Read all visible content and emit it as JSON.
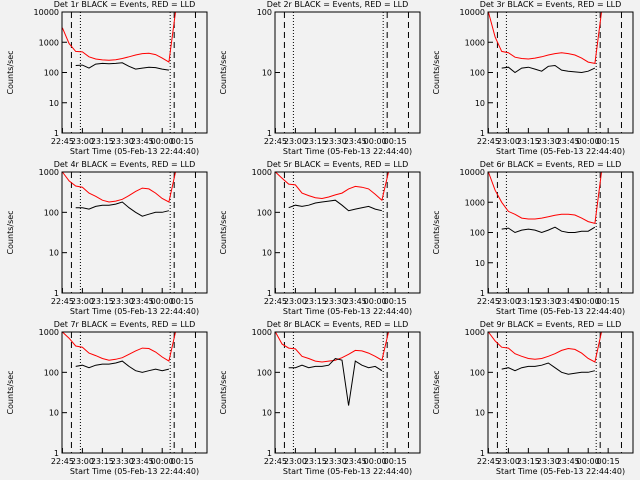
{
  "chart_data": [
    {
      "type": "line",
      "title": "Det 1r BLACK = Events, RED = LLD",
      "xlabel": "Start Time (05-Feb-13 22:44:40)",
      "ylabel": "Counts/sec",
      "log_y": true,
      "x": [
        "22:45",
        "22:50",
        "22:55",
        "23:00",
        "23:05",
        "23:10",
        "23:15",
        "23:20",
        "23:25",
        "23:30",
        "23:35",
        "23:40",
        "23:45",
        "23:50",
        "23:55",
        "00:00",
        "00:05",
        "00:10"
      ],
      "xlim": [
        "22:44:40",
        "00:33:40"
      ],
      "xticks": [
        "22:45",
        "23:00",
        "23:15",
        "23:30",
        "23:45",
        "00:00",
        "00:15"
      ],
      "ylim": [
        1,
        10000
      ],
      "yticks": [
        1,
        10,
        100,
        1000,
        10000
      ],
      "markers": [
        {
          "x": "22:51:45",
          "style": "dashed"
        },
        {
          "x": "22:58:30",
          "style": "dotted"
        },
        {
          "x": "00:06",
          "style": "dotted"
        },
        {
          "x": "00:09",
          "style": "dashed"
        },
        {
          "x": "00:25",
          "style": "dashed"
        }
      ],
      "series": [
        {
          "name": "LLD",
          "color": "#ff0000",
          "values": [
            3000,
            900,
            500,
            480,
            330,
            280,
            260,
            255,
            265,
            290,
            330,
            380,
            420,
            430,
            390,
            300,
            220,
            10000
          ]
        },
        {
          "name": "Events",
          "color": "#000000",
          "values": [
            null,
            null,
            170,
            175,
            140,
            190,
            200,
            195,
            200,
            210,
            160,
            130,
            140,
            150,
            145,
            130,
            120,
            null
          ]
        }
      ]
    },
    {
      "type": "line",
      "title": "Det 2r BLACK = Events, RED = LLD",
      "xlabel": "Start Time (05-Feb-13 22:44:40)",
      "ylabel": "Counts/sec",
      "log_y": true,
      "x": [],
      "xlim": [
        "22:44:40",
        "00:33:40"
      ],
      "xticks": [
        "22:45",
        "23:00",
        "23:15",
        "23:30",
        "23:45",
        "00:00",
        "00:15"
      ],
      "ylim": [
        1,
        100
      ],
      "yticks": [
        1,
        10,
        100
      ],
      "markers": [
        {
          "x": "22:51:45",
          "style": "dashed"
        },
        {
          "x": "22:58:30",
          "style": "dotted"
        },
        {
          "x": "00:06",
          "style": "dotted"
        },
        {
          "x": "00:09",
          "style": "dashed"
        },
        {
          "x": "00:25",
          "style": "dashed"
        }
      ],
      "series": []
    },
    {
      "type": "line",
      "title": "Det 3r BLACK = Events, RED = LLD",
      "xlabel": "Start Time (05-Feb-13 22:44:40)",
      "ylabel": "Counts/sec",
      "log_y": true,
      "x": [
        "22:45",
        "22:50",
        "22:55",
        "23:00",
        "23:05",
        "23:10",
        "23:15",
        "23:20",
        "23:25",
        "23:30",
        "23:35",
        "23:40",
        "23:45",
        "23:50",
        "23:55",
        "00:00",
        "00:05",
        "00:10"
      ],
      "xlim": [
        "22:44:40",
        "00:33:40"
      ],
      "xticks": [
        "22:45",
        "23:00",
        "23:15",
        "23:30",
        "23:45",
        "00:00",
        "00:15"
      ],
      "ylim": [
        1,
        10000
      ],
      "yticks": [
        1,
        10,
        100,
        1000,
        10000
      ],
      "markers": [
        {
          "x": "22:51:45",
          "style": "dashed"
        },
        {
          "x": "22:58:30",
          "style": "dotted"
        },
        {
          "x": "00:06",
          "style": "dotted"
        },
        {
          "x": "00:09",
          "style": "dashed"
        },
        {
          "x": "00:25",
          "style": "dashed"
        }
      ],
      "series": [
        {
          "name": "LLD",
          "color": "#ff0000",
          "values": [
            10000,
            1500,
            500,
            450,
            320,
            290,
            280,
            300,
            330,
            380,
            420,
            450,
            420,
            380,
            300,
            220,
            200,
            10000
          ]
        },
        {
          "name": "Events",
          "color": "#000000",
          "values": [
            null,
            null,
            140,
            150,
            100,
            140,
            150,
            130,
            110,
            160,
            170,
            120,
            110,
            105,
            100,
            110,
            140,
            null
          ]
        }
      ]
    },
    {
      "type": "line",
      "title": "Det 4r BLACK = Events, RED = LLD",
      "xlabel": "Start Time (05-Feb-13 22:44:40)",
      "ylabel": "Counts/sec",
      "log_y": true,
      "x": [
        "22:45",
        "22:50",
        "22:55",
        "23:00",
        "23:05",
        "23:10",
        "23:15",
        "23:20",
        "23:25",
        "23:30",
        "23:35",
        "23:40",
        "23:45",
        "23:50",
        "23:55",
        "00:00",
        "00:05",
        "00:10"
      ],
      "xlim": [
        "22:44:40",
        "00:33:40"
      ],
      "xticks": [
        "22:45",
        "23:00",
        "23:15",
        "23:30",
        "23:45",
        "00:00",
        "00:15"
      ],
      "ylim": [
        1,
        1000
      ],
      "yticks": [
        1,
        10,
        100,
        1000
      ],
      "markers": [
        {
          "x": "22:51:45",
          "style": "dashed"
        },
        {
          "x": "22:58:30",
          "style": "dotted"
        },
        {
          "x": "00:06",
          "style": "dotted"
        },
        {
          "x": "00:09",
          "style": "dashed"
        },
        {
          "x": "00:25",
          "style": "dashed"
        }
      ],
      "series": [
        {
          "name": "LLD",
          "color": "#ff0000",
          "values": [
            1000,
            600,
            450,
            420,
            300,
            250,
            200,
            180,
            190,
            210,
            260,
            330,
            400,
            380,
            300,
            220,
            180,
            1000
          ]
        },
        {
          "name": "Events",
          "color": "#000000",
          "values": [
            null,
            null,
            130,
            130,
            120,
            140,
            150,
            150,
            160,
            180,
            130,
            100,
            80,
            90,
            100,
            100,
            110,
            null
          ]
        }
      ]
    },
    {
      "type": "line",
      "title": "Det 5r BLACK = Events, RED = LLD",
      "xlabel": "Start Time (05-Feb-13 22:44:40)",
      "ylabel": "Counts/sec",
      "log_y": true,
      "x": [
        "22:45",
        "22:50",
        "22:55",
        "23:00",
        "23:05",
        "23:10",
        "23:15",
        "23:20",
        "23:25",
        "23:30",
        "23:35",
        "23:40",
        "23:45",
        "23:50",
        "23:55",
        "00:00",
        "00:05",
        "00:10"
      ],
      "xlim": [
        "22:44:40",
        "00:33:40"
      ],
      "xticks": [
        "22:45",
        "23:00",
        "23:15",
        "23:30",
        "23:45",
        "00:00",
        "00:15"
      ],
      "ylim": [
        1,
        1000
      ],
      "yticks": [
        1,
        10,
        100,
        1000
      ],
      "markers": [
        {
          "x": "22:51:45",
          "style": "dashed"
        },
        {
          "x": "22:58:30",
          "style": "dotted"
        },
        {
          "x": "00:06",
          "style": "dotted"
        },
        {
          "x": "00:09",
          "style": "dashed"
        },
        {
          "x": "00:25",
          "style": "dashed"
        }
      ],
      "series": [
        {
          "name": "LLD",
          "color": "#ff0000",
          "values": [
            1000,
            700,
            500,
            480,
            300,
            260,
            230,
            220,
            240,
            270,
            300,
            380,
            440,
            420,
            380,
            280,
            200,
            1000
          ]
        },
        {
          "name": "Events",
          "color": "#000000",
          "values": [
            null,
            null,
            130,
            150,
            140,
            150,
            170,
            180,
            190,
            200,
            150,
            110,
            120,
            130,
            140,
            120,
            110,
            null
          ]
        }
      ]
    },
    {
      "type": "line",
      "title": "Det 6r BLACK = Events, RED = LLD",
      "xlabel": "Start Time (05-Feb-13 22:44:40)",
      "ylabel": "Counts/sec",
      "log_y": true,
      "x": [
        "22:45",
        "22:50",
        "22:55",
        "23:00",
        "23:05",
        "23:10",
        "23:15",
        "23:20",
        "23:25",
        "23:30",
        "23:35",
        "23:40",
        "23:45",
        "23:50",
        "23:55",
        "00:00",
        "00:05",
        "00:10"
      ],
      "xlim": [
        "22:44:40",
        "00:33:40"
      ],
      "xticks": [
        "22:45",
        "23:00",
        "23:15",
        "23:30",
        "23:45",
        "00:00",
        "00:15"
      ],
      "ylim": [
        1,
        10000
      ],
      "yticks": [
        1,
        10,
        100,
        1000,
        10000
      ],
      "markers": [
        {
          "x": "22:51:45",
          "style": "dashed"
        },
        {
          "x": "22:58:30",
          "style": "dotted"
        },
        {
          "x": "00:06",
          "style": "dotted"
        },
        {
          "x": "00:09",
          "style": "dashed"
        },
        {
          "x": "00:25",
          "style": "dashed"
        }
      ],
      "series": [
        {
          "name": "LLD",
          "color": "#ff0000",
          "values": [
            10000,
            2500,
            1000,
            500,
            400,
            300,
            280,
            280,
            300,
            330,
            370,
            400,
            400,
            380,
            300,
            230,
            200,
            10000
          ]
        },
        {
          "name": "Events",
          "color": "#000000",
          "values": [
            null,
            null,
            130,
            140,
            100,
            120,
            130,
            120,
            100,
            120,
            150,
            110,
            100,
            100,
            110,
            110,
            150,
            null
          ]
        }
      ]
    },
    {
      "type": "line",
      "title": "Det 7r BLACK = Events, RED = LLD",
      "xlabel": "Start Time (05-Feb-13 22:44:40)",
      "ylabel": "Counts/sec",
      "log_y": true,
      "x": [
        "22:45",
        "22:50",
        "22:55",
        "23:00",
        "23:05",
        "23:10",
        "23:15",
        "23:20",
        "23:25",
        "23:30",
        "23:35",
        "23:40",
        "23:45",
        "23:50",
        "23:55",
        "00:00",
        "00:05",
        "00:10"
      ],
      "xlim": [
        "22:44:40",
        "00:33:40"
      ],
      "xticks": [
        "22:45",
        "23:00",
        "23:15",
        "23:30",
        "23:45",
        "00:00",
        "00:15"
      ],
      "ylim": [
        1,
        1000
      ],
      "yticks": [
        1,
        10,
        100,
        1000
      ],
      "markers": [
        {
          "x": "22:51:45",
          "style": "dashed"
        },
        {
          "x": "22:58:30",
          "style": "dotted"
        },
        {
          "x": "00:06",
          "style": "dotted"
        },
        {
          "x": "00:09",
          "style": "dashed"
        },
        {
          "x": "00:25",
          "style": "dashed"
        }
      ],
      "series": [
        {
          "name": "LLD",
          "color": "#ff0000",
          "values": [
            1000,
            700,
            450,
            420,
            300,
            260,
            220,
            200,
            210,
            230,
            280,
            340,
            400,
            390,
            320,
            240,
            190,
            1000
          ]
        },
        {
          "name": "Events",
          "color": "#000000",
          "values": [
            null,
            null,
            140,
            150,
            130,
            150,
            160,
            160,
            170,
            190,
            140,
            110,
            100,
            110,
            120,
            110,
            120,
            null
          ]
        }
      ]
    },
    {
      "type": "line",
      "title": "Det 8r BLACK = Events, RED = LLD",
      "xlabel": "Start Time (05-Feb-13 22:44:40)",
      "ylabel": "Counts/sec",
      "log_y": true,
      "x": [
        "22:45",
        "22:50",
        "22:55",
        "23:00",
        "23:05",
        "23:10",
        "23:15",
        "23:20",
        "23:25",
        "23:30",
        "23:35",
        "23:40",
        "23:45",
        "23:50",
        "23:55",
        "00:00",
        "00:05",
        "00:10"
      ],
      "xlim": [
        "22:44:40",
        "00:33:40"
      ],
      "xticks": [
        "22:45",
        "23:00",
        "23:15",
        "23:30",
        "23:45",
        "00:00",
        "00:15"
      ],
      "ylim": [
        1,
        1000
      ],
      "yticks": [
        1,
        10,
        100,
        1000
      ],
      "markers": [
        {
          "x": "22:51:45",
          "style": "dashed"
        },
        {
          "x": "22:58:30",
          "style": "dotted"
        },
        {
          "x": "00:06",
          "style": "dotted"
        },
        {
          "x": "00:09",
          "style": "dashed"
        },
        {
          "x": "00:25",
          "style": "dashed"
        }
      ],
      "series": [
        {
          "name": "LLD",
          "color": "#ff0000",
          "values": [
            1000,
            500,
            400,
            380,
            250,
            220,
            190,
            180,
            190,
            200,
            230,
            280,
            350,
            340,
            300,
            250,
            200,
            1000
          ]
        },
        {
          "name": "Events",
          "color": "#000000",
          "values": [
            null,
            null,
            130,
            130,
            150,
            130,
            140,
            140,
            150,
            220,
            200,
            15,
            190,
            150,
            130,
            140,
            110,
            null
          ]
        }
      ]
    },
    {
      "type": "line",
      "title": "Det 9r BLACK = Events, RED = LLD",
      "xlabel": "Start Time (05-Feb-13 22:44:40)",
      "ylabel": "Counts/sec",
      "log_y": true,
      "x": [
        "22:45",
        "22:50",
        "22:55",
        "23:00",
        "23:05",
        "23:10",
        "23:15",
        "23:20",
        "23:25",
        "23:30",
        "23:35",
        "23:40",
        "23:45",
        "23:50",
        "23:55",
        "00:00",
        "00:05",
        "00:10"
      ],
      "xlim": [
        "22:44:40",
        "00:33:40"
      ],
      "xticks": [
        "22:45",
        "23:00",
        "23:15",
        "23:30",
        "23:45",
        "00:00",
        "00:15"
      ],
      "ylim": [
        1,
        1000
      ],
      "yticks": [
        1,
        10,
        100,
        1000
      ],
      "markers": [
        {
          "x": "22:51:45",
          "style": "dashed"
        },
        {
          "x": "22:58:30",
          "style": "dotted"
        },
        {
          "x": "00:06",
          "style": "dotted"
        },
        {
          "x": "00:09",
          "style": "dashed"
        },
        {
          "x": "00:25",
          "style": "dashed"
        }
      ],
      "series": [
        {
          "name": "LLD",
          "color": "#ff0000",
          "values": [
            1000,
            600,
            420,
            400,
            290,
            250,
            220,
            210,
            220,
            250,
            290,
            350,
            390,
            370,
            300,
            220,
            180,
            1000
          ]
        },
        {
          "name": "Events",
          "color": "#000000",
          "values": [
            null,
            null,
            120,
            130,
            110,
            130,
            140,
            140,
            150,
            170,
            130,
            100,
            90,
            95,
            100,
            100,
            110,
            null
          ]
        }
      ]
    }
  ]
}
